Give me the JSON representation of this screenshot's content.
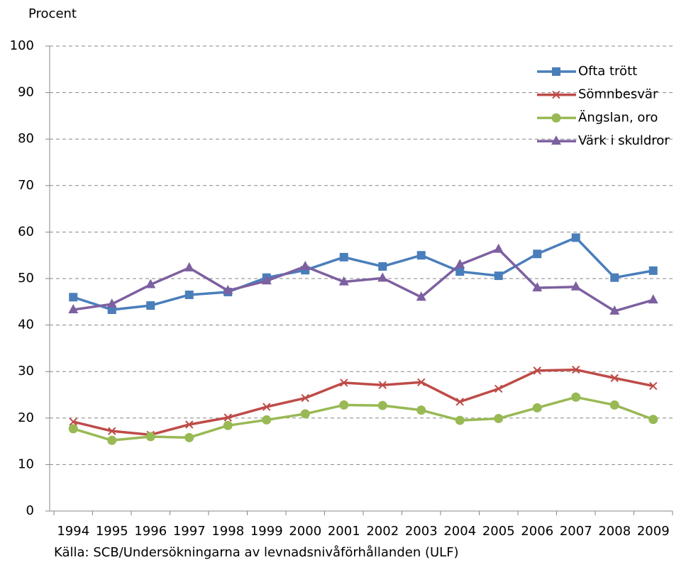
{
  "chart_data": {
    "type": "line",
    "y_label": "Procent",
    "note": "Källa: SCB/Undersökningarna av levnadsnivåförhållanden (ULF)",
    "categories": [
      "1994",
      "1995",
      "1996",
      "1997",
      "1998",
      "1999",
      "2000",
      "2001",
      "2002",
      "2003",
      "2004",
      "2005",
      "2006",
      "2007",
      "2008",
      "2009"
    ],
    "series": [
      {
        "name": "Ofta trött",
        "color": "#4a7ebb",
        "marker": "square",
        "values": [
          46.0,
          43.3,
          44.2,
          46.5,
          47.1,
          50.2,
          51.8,
          54.6,
          52.6,
          55.0,
          51.5,
          50.6,
          55.3,
          58.8,
          50.2,
          51.7
        ]
      },
      {
        "name": "Sömnbesvär",
        "color": "#be4b48",
        "marker": "x",
        "values": [
          19.2,
          17.2,
          16.4,
          18.6,
          20.1,
          22.4,
          24.3,
          27.6,
          27.1,
          27.7,
          23.5,
          26.3,
          30.2,
          30.4,
          28.6,
          26.9
        ]
      },
      {
        "name": "Ängslan, oro",
        "color": "#98b954",
        "marker": "circle",
        "values": [
          17.7,
          15.2,
          16.0,
          15.8,
          18.4,
          19.6,
          20.9,
          22.8,
          22.7,
          21.7,
          19.5,
          19.9,
          22.2,
          24.5,
          22.8,
          19.7
        ]
      },
      {
        "name": "Värk i skuldror",
        "color": "#7d60a0",
        "marker": "triangle",
        "values": [
          43.3,
          44.5,
          48.7,
          52.3,
          47.4,
          49.5,
          52.6,
          49.3,
          50.1,
          46.0,
          53.0,
          56.3,
          48.0,
          48.2,
          43.0,
          45.4
        ]
      }
    ],
    "ylim": [
      0,
      100
    ],
    "yticks": [
      0,
      10,
      20,
      30,
      40,
      50,
      60,
      70,
      80,
      90,
      100
    ],
    "grid": true,
    "legend": "top-right"
  }
}
